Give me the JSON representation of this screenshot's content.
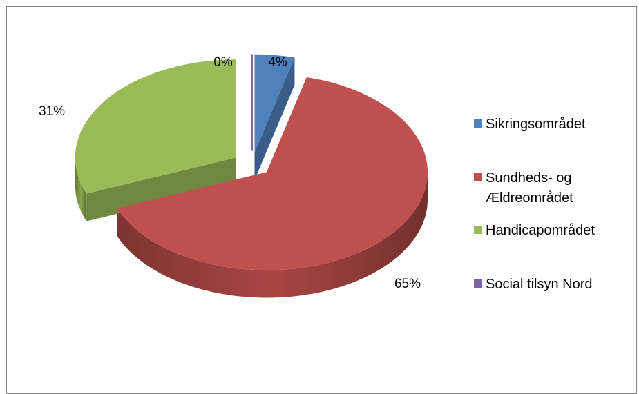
{
  "chart_data": {
    "type": "pie",
    "three_d": true,
    "exploded": true,
    "legend_position": "right",
    "slices": [
      {
        "label": "Sikringsområdet",
        "value": 4,
        "value_label": "4%",
        "color": "#4F81BD"
      },
      {
        "label": "Sundheds- og Ældreområdet",
        "value": 65,
        "value_label": "65%",
        "color": "#C0504D"
      },
      {
        "label": "Handicapområdet",
        "value": 31,
        "value_label": "31%",
        "color": "#9BBB59"
      },
      {
        "label": "Social tilsyn Nord",
        "value": 0,
        "value_label": "0%",
        "color": "#8064A2"
      }
    ]
  }
}
